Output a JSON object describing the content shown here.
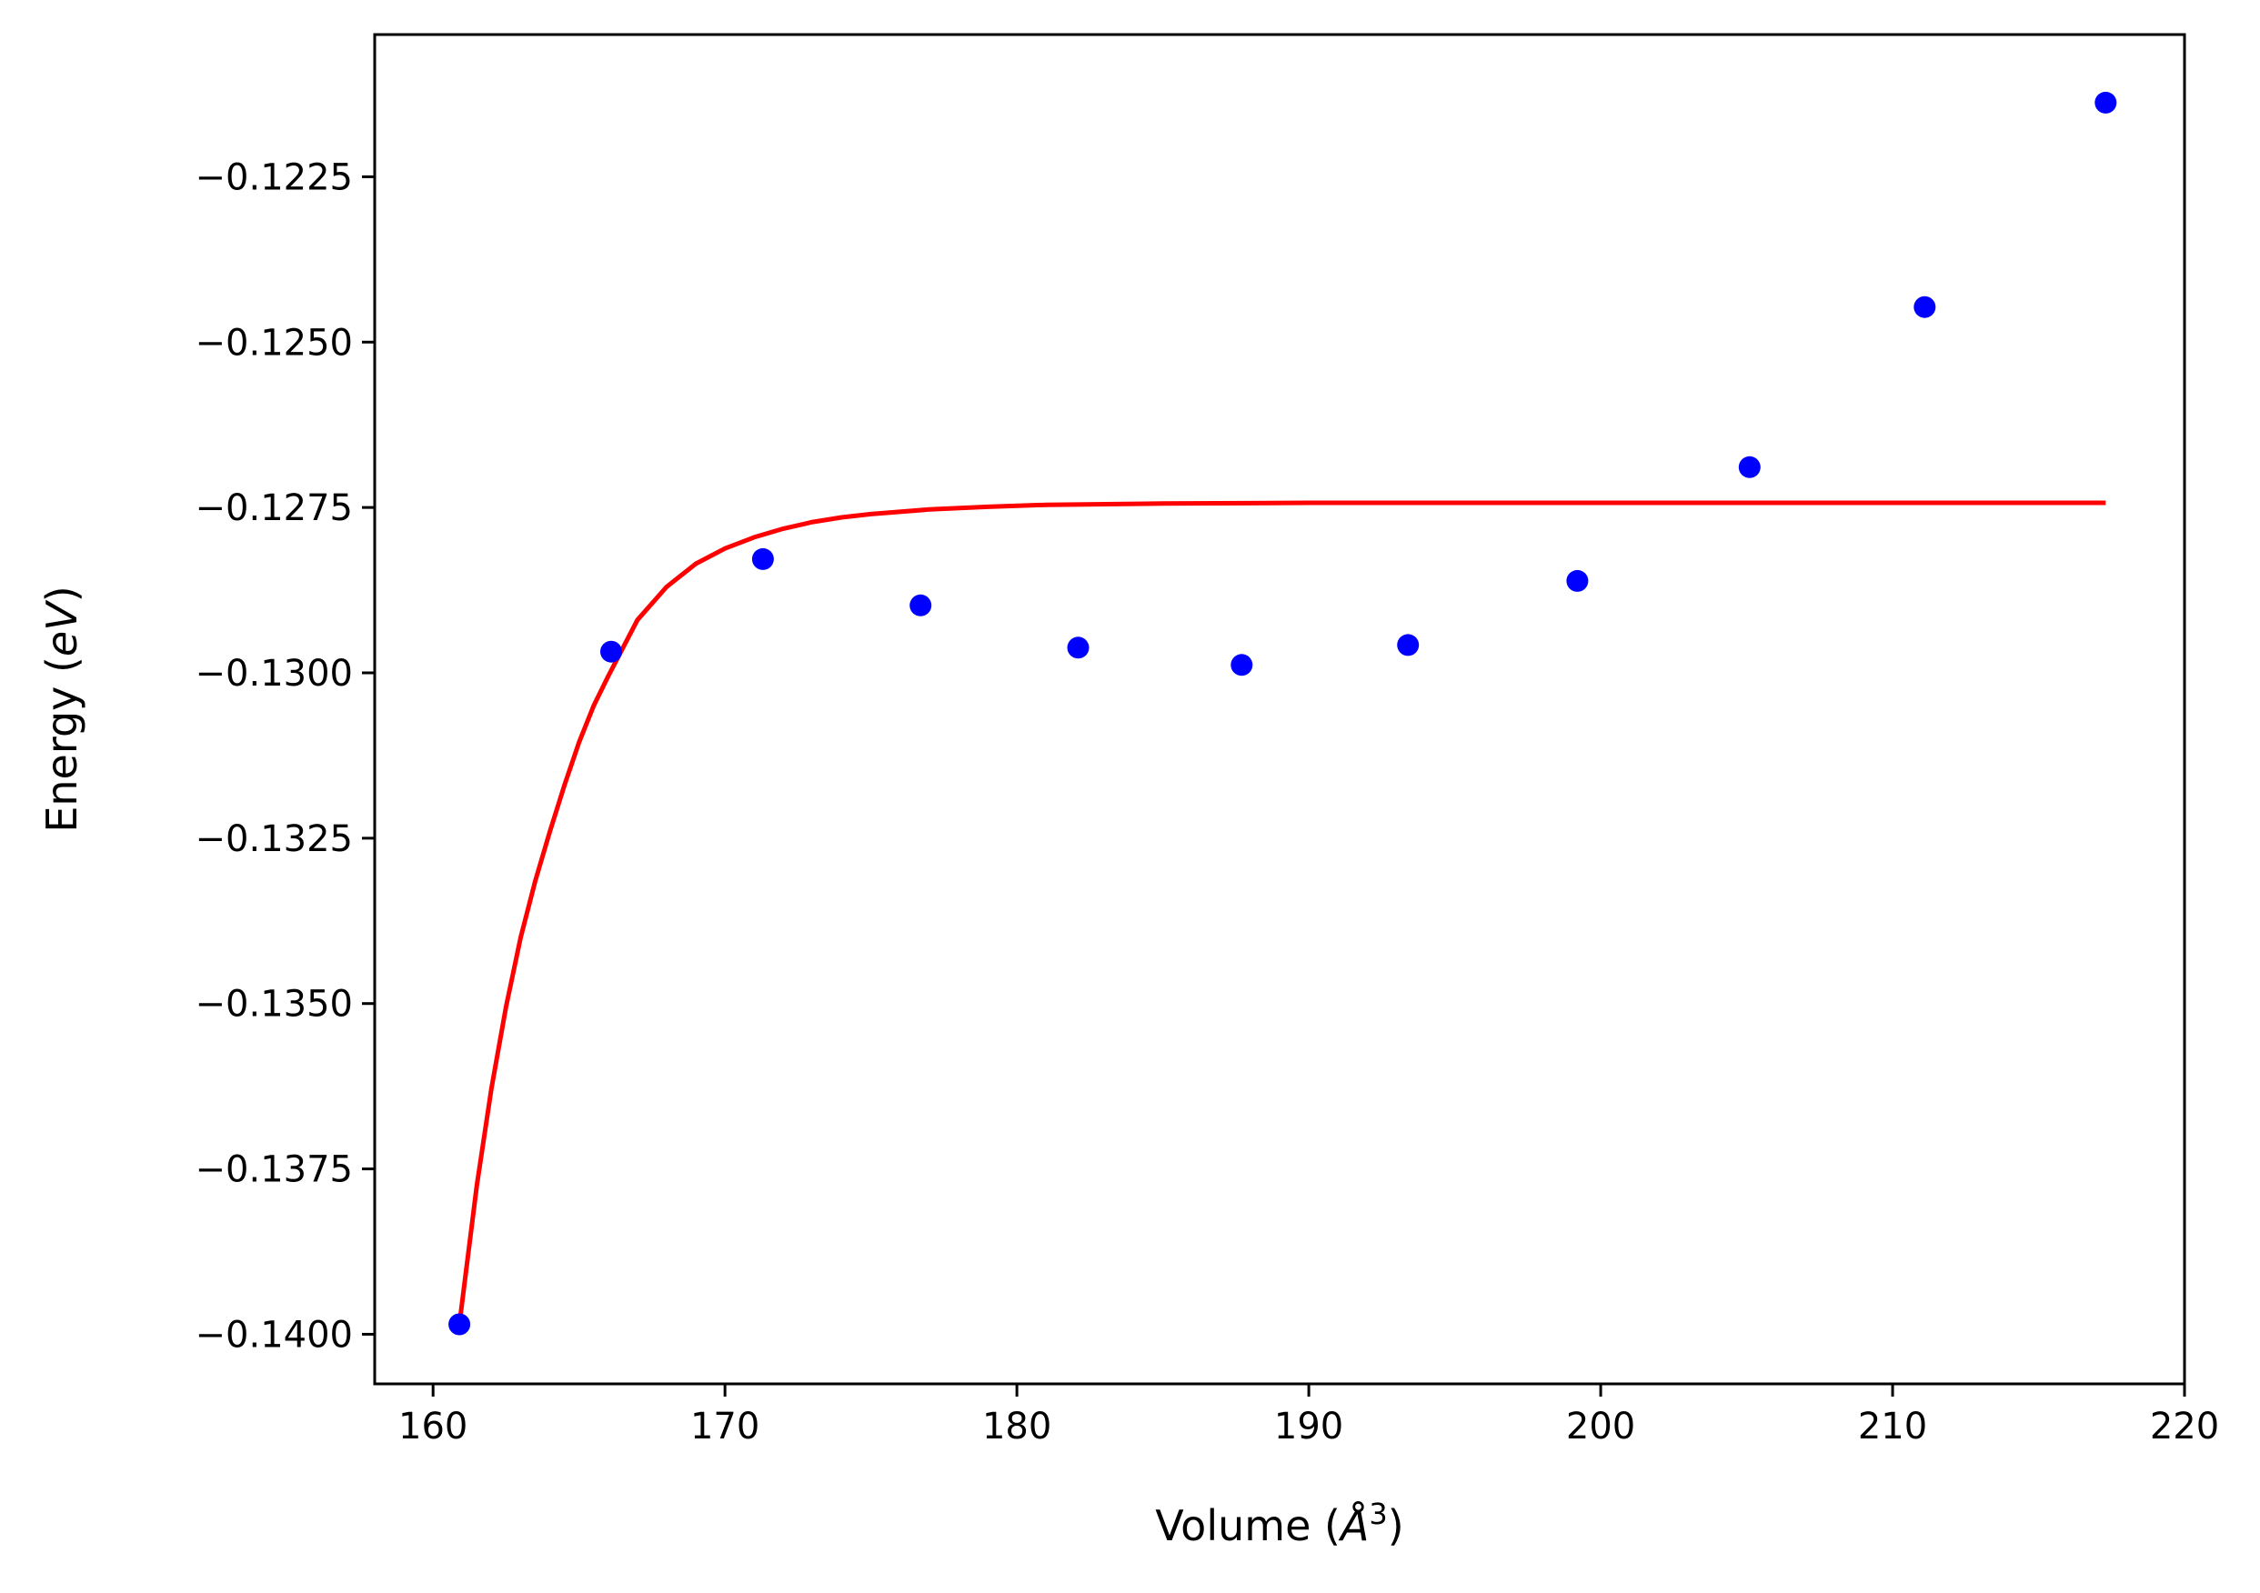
{
  "chart_data": {
    "type": "scatter",
    "xlabel": "Volume (Å³)",
    "xlabel_parts": {
      "prefix": "Volume (",
      "symbol": "Å",
      "power": "3",
      "suffix": ")"
    },
    "ylabel": "Energy (eV)",
    "ylabel_parts": {
      "prefix": "Energy (",
      "unit": "eV",
      "suffix": ")"
    },
    "xlim": [
      158.0,
      220.0
    ],
    "ylim": [
      -0.14075,
      -0.12035
    ],
    "x_ticks": [
      160,
      170,
      180,
      190,
      200,
      210,
      220
    ],
    "x_tick_labels": [
      "160",
      "170",
      "180",
      "190",
      "200",
      "210",
      "220"
    ],
    "y_ticks": [
      -0.14,
      -0.1375,
      -0.135,
      -0.1325,
      -0.13,
      -0.1275,
      -0.125,
      -0.1225
    ],
    "y_tick_labels": [
      "−0.1400",
      "−0.1375",
      "−0.1350",
      "−0.1325",
      "−0.1300",
      "−0.1275",
      "−0.1250",
      "−0.1225"
    ],
    "grid": false,
    "series": [
      {
        "kind": "points",
        "color": "#0000ff",
        "x": [
          160.9,
          166.1,
          171.3,
          176.7,
          182.1,
          187.7,
          193.4,
          199.2,
          205.1,
          211.1,
          217.3
        ],
        "y": [
          -0.13985,
          -0.12968,
          -0.12828,
          -0.12898,
          -0.12962,
          -0.12988,
          -0.12958,
          -0.12861,
          -0.12689,
          -0.12447,
          -0.12138
        ]
      },
      {
        "kind": "line",
        "color": "#ff0000",
        "x": [
          160.9,
          161.5,
          162.0,
          162.5,
          163.0,
          163.5,
          164.0,
          164.5,
          165.0,
          165.5,
          166.0,
          167.0,
          168.0,
          169.0,
          170.0,
          171.0,
          172.0,
          173.0,
          174.0,
          175.0,
          177.0,
          179.0,
          181.0,
          185.0,
          190.0,
          200.0,
          210.0,
          217.3
        ],
        "y": [
          -0.13985,
          -0.13775,
          -0.13628,
          -0.13505,
          -0.134,
          -0.13315,
          -0.1324,
          -0.1317,
          -0.13105,
          -0.1305,
          -0.13005,
          -0.1292,
          -0.1287,
          -0.12835,
          -0.12812,
          -0.12795,
          -0.12782,
          -0.12772,
          -0.12765,
          -0.1276,
          -0.12753,
          -0.12749,
          -0.12746,
          -0.12744,
          -0.12743,
          -0.12743,
          -0.12743,
          -0.12743
        ]
      }
    ]
  }
}
